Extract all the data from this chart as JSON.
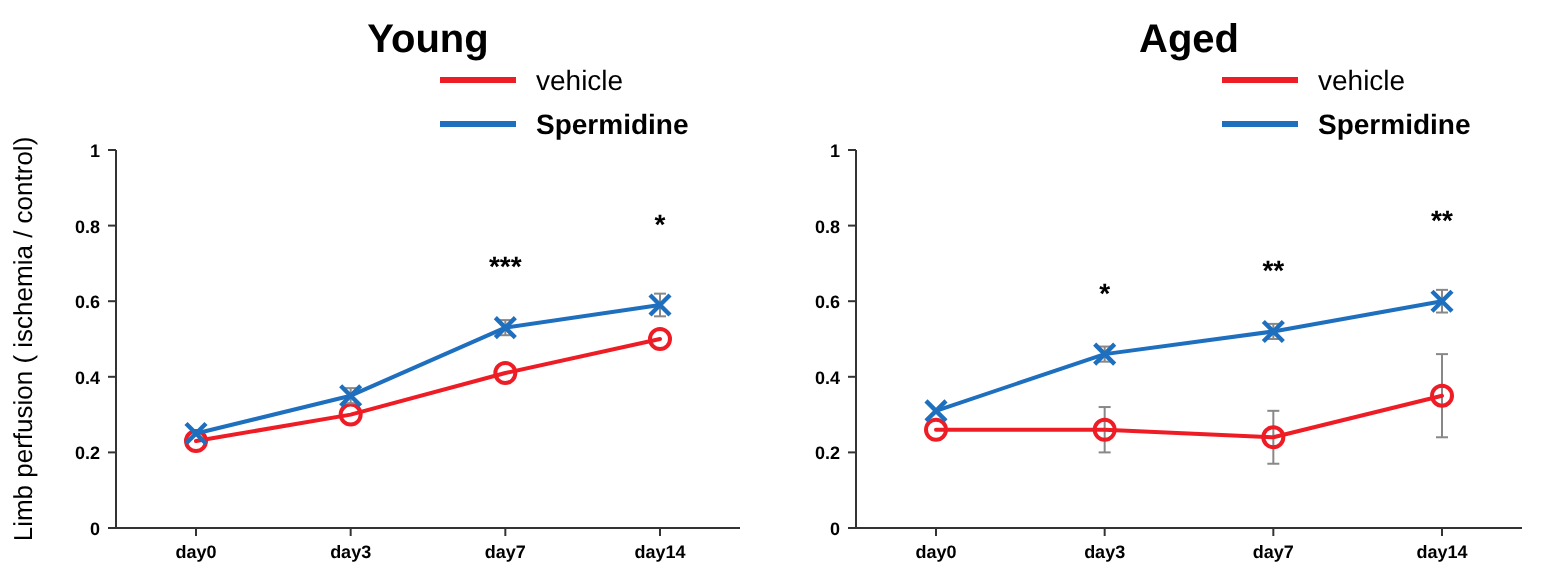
{
  "chart_data": [
    {
      "type": "line",
      "title": "Young",
      "ylabel": "Limb perfusion ( ischemia / control)",
      "categories": [
        "day0",
        "day3",
        "day7",
        "day14"
      ],
      "ylim": [
        0,
        1
      ],
      "yticks": [
        0,
        0.2,
        0.4,
        0.6,
        0.8,
        1
      ],
      "legend": "top right",
      "grid": false,
      "series": [
        {
          "name": "vehicle",
          "color": "#ee1c25",
          "marker": "circle",
          "values": [
            0.23,
            0.3,
            0.41,
            0.5
          ]
        },
        {
          "name": "Spermidine",
          "color": "#1f6fbf",
          "marker": "cross",
          "values": [
            0.25,
            0.35,
            0.53,
            0.59
          ],
          "errors": [
            null,
            0.02,
            0.02,
            0.03
          ]
        }
      ],
      "annotations": [
        "***",
        "*"
      ]
    },
    {
      "type": "line",
      "title": "Aged",
      "categories": [
        "day0",
        "day3",
        "day7",
        "day14"
      ],
      "ylim": [
        0,
        1
      ],
      "yticks": [
        0,
        0.2,
        0.4,
        0.6,
        0.8,
        1
      ],
      "legend": "top right",
      "grid": false,
      "series": [
        {
          "name": "vehicle",
          "color": "#ee1c25",
          "marker": "circle",
          "values": [
            0.26,
            0.26,
            0.24,
            0.35
          ],
          "errors": [
            null,
            0.06,
            0.07,
            0.11
          ]
        },
        {
          "name": "Spermidine",
          "color": "#1f6fbf",
          "marker": "cross",
          "values": [
            0.31,
            0.46,
            0.52,
            0.6
          ],
          "errors": [
            null,
            0.02,
            0.02,
            0.03
          ]
        }
      ],
      "annotations": [
        "*",
        "**",
        "**"
      ]
    }
  ]
}
